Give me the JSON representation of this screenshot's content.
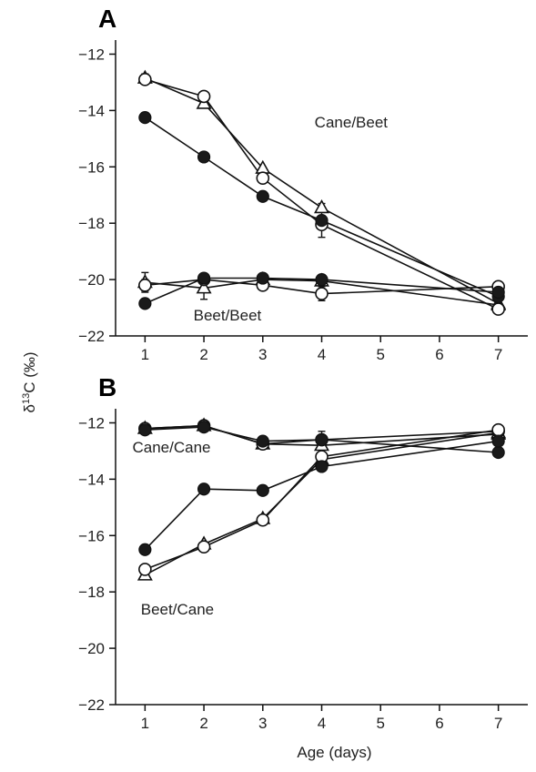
{
  "figure": {
    "ylabel_prefix": "δ",
    "ylabel_superscript": "13",
    "ylabel_suffix": "C (‰)"
  },
  "chart_data": [
    {
      "type": "line",
      "panel": "A",
      "xlabel": "",
      "ylabel": "δ13C (‰)",
      "xlim": [
        0.5,
        7.5
      ],
      "ylim": [
        -22,
        -11.5
      ],
      "xticks": [
        1,
        2,
        3,
        4,
        5,
        6,
        7
      ],
      "yticks": [
        -22,
        -20,
        -18,
        -16,
        -14,
        -12
      ],
      "grid": false,
      "annotations": [
        {
          "text": "Cane/Beet",
          "x": 4.5,
          "y": -14.6
        },
        {
          "text": "Beet/Beet",
          "x": 2.4,
          "y": -21.45
        }
      ],
      "series": [
        {
          "group": "Cane/Beet",
          "marker": "circle-filled",
          "x": [
            1,
            2,
            3,
            4,
            7
          ],
          "y": [
            -14.25,
            -15.65,
            -17.05,
            -17.9,
            -20.6
          ],
          "err": [
            0,
            0,
            0,
            0.15,
            0.1
          ]
        },
        {
          "group": "Cane/Beet",
          "marker": "circle-open",
          "x": [
            1,
            2,
            3,
            4,
            7
          ],
          "y": [
            -12.9,
            -13.5,
            -16.4,
            -18.05,
            -21.05
          ],
          "err": [
            0,
            0,
            0,
            0.45,
            0.15
          ]
        },
        {
          "group": "Cane/Beet",
          "marker": "triangle-open",
          "x": [
            1,
            2,
            3,
            4,
            7
          ],
          "y": [
            -12.85,
            -13.75,
            -16.05,
            -17.45,
            -20.85
          ],
          "err": [
            0.15,
            0,
            0,
            0.15,
            0
          ]
        },
        {
          "group": "Beet/Beet",
          "marker": "circle-filled",
          "x": [
            1,
            2,
            3,
            4,
            7
          ],
          "y": [
            -20.85,
            -19.95,
            -19.95,
            -20.0,
            -20.45
          ],
          "err": [
            0,
            0,
            0,
            0,
            0
          ]
        },
        {
          "group": "Beet/Beet",
          "marker": "circle-open",
          "x": [
            1,
            2,
            3,
            4,
            7
          ],
          "y": [
            -20.2,
            -20.0,
            -20.2,
            -20.5,
            -20.25
          ],
          "err": [
            0.2,
            0,
            0,
            0.25,
            0
          ]
        },
        {
          "group": "Beet/Beet",
          "marker": "triangle-open",
          "x": [
            1,
            2,
            3,
            4,
            7
          ],
          "y": [
            -20.1,
            -20.3,
            -20.0,
            -20.05,
            -20.9
          ],
          "err": [
            0.35,
            0.4,
            0,
            0,
            0
          ]
        }
      ]
    },
    {
      "type": "line",
      "panel": "B",
      "xlabel": "Age (days)",
      "ylabel": "δ13C (‰)",
      "xlim": [
        0.5,
        7.5
      ],
      "ylim": [
        -22,
        -11.5
      ],
      "xticks": [
        1,
        2,
        3,
        4,
        5,
        6,
        7
      ],
      "yticks": [
        -22,
        -20,
        -18,
        -16,
        -14,
        -12
      ],
      "grid": false,
      "annotations": [
        {
          "text": "Cane/Cane",
          "x": 1.45,
          "y": -13.05
        },
        {
          "text": "Beet/Cane",
          "x": 1.55,
          "y": -18.8
        }
      ],
      "series": [
        {
          "group": "Cane/Cane",
          "marker": "circle-filled",
          "x": [
            1,
            2,
            3,
            4,
            7
          ],
          "y": [
            -12.25,
            -12.15,
            -12.65,
            -12.6,
            -13.05
          ],
          "err": [
            0,
            0,
            0,
            0.3,
            0
          ]
        },
        {
          "group": "Cane/Cane",
          "marker": "circle-open",
          "x": [
            1,
            2,
            3,
            4,
            7
          ],
          "y": [
            -12.2,
            -12.1,
            -12.75,
            -12.6,
            -12.3
          ],
          "err": [
            0,
            0,
            0,
            0,
            0
          ]
        },
        {
          "group": "Cane/Cane",
          "marker": "triangle-open",
          "x": [
            1,
            2,
            3,
            4,
            7
          ],
          "y": [
            -12.2,
            -12.1,
            -12.75,
            -12.8,
            -12.4
          ],
          "err": [
            0,
            0,
            0,
            0,
            0
          ]
        },
        {
          "group": "Beet/Cane",
          "marker": "circle-filled",
          "x": [
            1,
            2,
            3,
            4,
            7
          ],
          "y": [
            -16.5,
            -14.35,
            -14.4,
            -13.55,
            -12.65
          ],
          "err": [
            0,
            0,
            0,
            0,
            0
          ]
        },
        {
          "group": "Beet/Cane",
          "marker": "circle-open",
          "x": [
            1,
            2,
            3,
            4,
            7
          ],
          "y": [
            -17.2,
            -16.4,
            -15.45,
            -13.2,
            -12.25
          ],
          "err": [
            0,
            0,
            0,
            0,
            0
          ]
        },
        {
          "group": "Beet/Cane",
          "marker": "triangle-open",
          "x": [
            1,
            2,
            3,
            4,
            7
          ],
          "y": [
            -17.4,
            -16.3,
            -15.4,
            -13.3,
            -12.35
          ],
          "err": [
            0,
            0,
            0,
            0,
            0
          ]
        }
      ]
    }
  ]
}
